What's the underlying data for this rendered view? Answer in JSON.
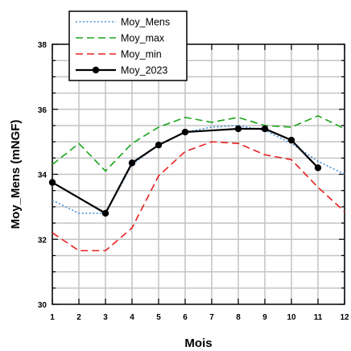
{
  "chart_data": {
    "type": "line",
    "title": "",
    "xlabel": "Mois",
    "ylabel": "Moy_Mens (mNGF)",
    "x": [
      1,
      2,
      3,
      4,
      5,
      6,
      7,
      8,
      9,
      10,
      11,
      12
    ],
    "xlim": [
      1,
      12
    ],
    "ylim": [
      30,
      38
    ],
    "xticks": [
      1,
      2,
      3,
      4,
      5,
      6,
      7,
      8,
      9,
      10,
      11,
      12
    ],
    "yticks": [
      30,
      32,
      34,
      36,
      38
    ],
    "grid": true,
    "legend_position": "top-left",
    "series": [
      {
        "name": "Moy_Mens",
        "color": "#4a90d9",
        "style": "dotted",
        "markers": false,
        "values": [
          33.2,
          32.8,
          32.8,
          34.3,
          34.9,
          35.3,
          35.45,
          35.5,
          35.35,
          34.95,
          34.4,
          34.0
        ]
      },
      {
        "name": "Moy_max",
        "color": "#1aa51a",
        "style": "dashed",
        "markers": false,
        "values": [
          34.3,
          34.95,
          34.1,
          34.95,
          35.45,
          35.75,
          35.6,
          35.75,
          35.5,
          35.45,
          35.8,
          35.4
        ]
      },
      {
        "name": "Moy_min",
        "color": "#e82020",
        "style": "dashed",
        "markers": false,
        "values": [
          32.2,
          31.65,
          31.65,
          32.35,
          33.95,
          34.7,
          35.0,
          34.95,
          34.6,
          34.45,
          33.6,
          32.85
        ]
      },
      {
        "name": "Moy_2023",
        "color": "#000000",
        "style": "solid",
        "markers": true,
        "values": [
          33.75,
          null,
          32.8,
          34.35,
          34.9,
          35.3,
          null,
          35.4,
          35.4,
          35.05,
          34.2,
          null
        ]
      }
    ]
  }
}
